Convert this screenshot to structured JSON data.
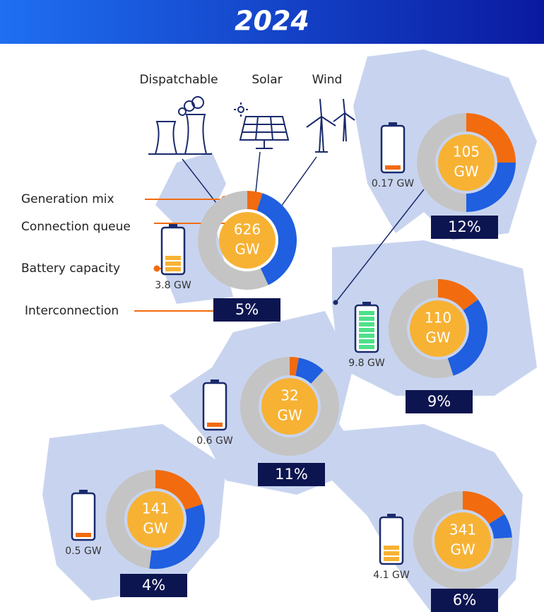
{
  "title": "2024",
  "legend": {
    "mix_labels": [
      "Dispatchable",
      "Solar",
      "Wind"
    ],
    "mix_colors": [
      "#c4c4c4",
      "#f26b0f",
      "#1f5fe0"
    ],
    "keys": [
      "Generation mix",
      "Connection queue",
      "Battery capacity",
      "Interconnection"
    ]
  },
  "sites": [
    {
      "queue": 626,
      "queue_unit": "GW",
      "battery": "3.8 GW",
      "battery_bars": 3,
      "battery_color": "#f7b234",
      "interconnection": "5%",
      "mix": [
        57,
        5,
        38
      ]
    },
    {
      "queue": 105,
      "queue_unit": "GW",
      "battery": "0.17 GW",
      "battery_bars": 1,
      "battery_color": "#f26b0f",
      "interconnection": "12%",
      "mix": [
        50,
        25,
        25
      ]
    },
    {
      "queue": 110,
      "queue_unit": "GW",
      "battery": "9.8 GW",
      "battery_bars": 7,
      "battery_color": "#4ee08a",
      "interconnection": "9%",
      "mix": [
        55,
        15,
        30
      ]
    },
    {
      "queue": 32,
      "queue_unit": "GW",
      "battery": "0.6 GW",
      "battery_bars": 1,
      "battery_color": "#f26b0f",
      "interconnection": "11%",
      "mix": [
        88,
        3,
        9
      ]
    },
    {
      "queue": 141,
      "queue_unit": "GW",
      "battery": "0.5 GW",
      "battery_bars": 1,
      "battery_color": "#f26b0f",
      "interconnection": "4%",
      "mix": [
        48,
        20,
        32
      ]
    },
    {
      "queue": 341,
      "queue_unit": "GW",
      "battery": "4.1 GW",
      "battery_bars": 3,
      "battery_color": "#f7b234",
      "interconnection": "6%",
      "mix": [
        76,
        16,
        8
      ]
    }
  ]
}
